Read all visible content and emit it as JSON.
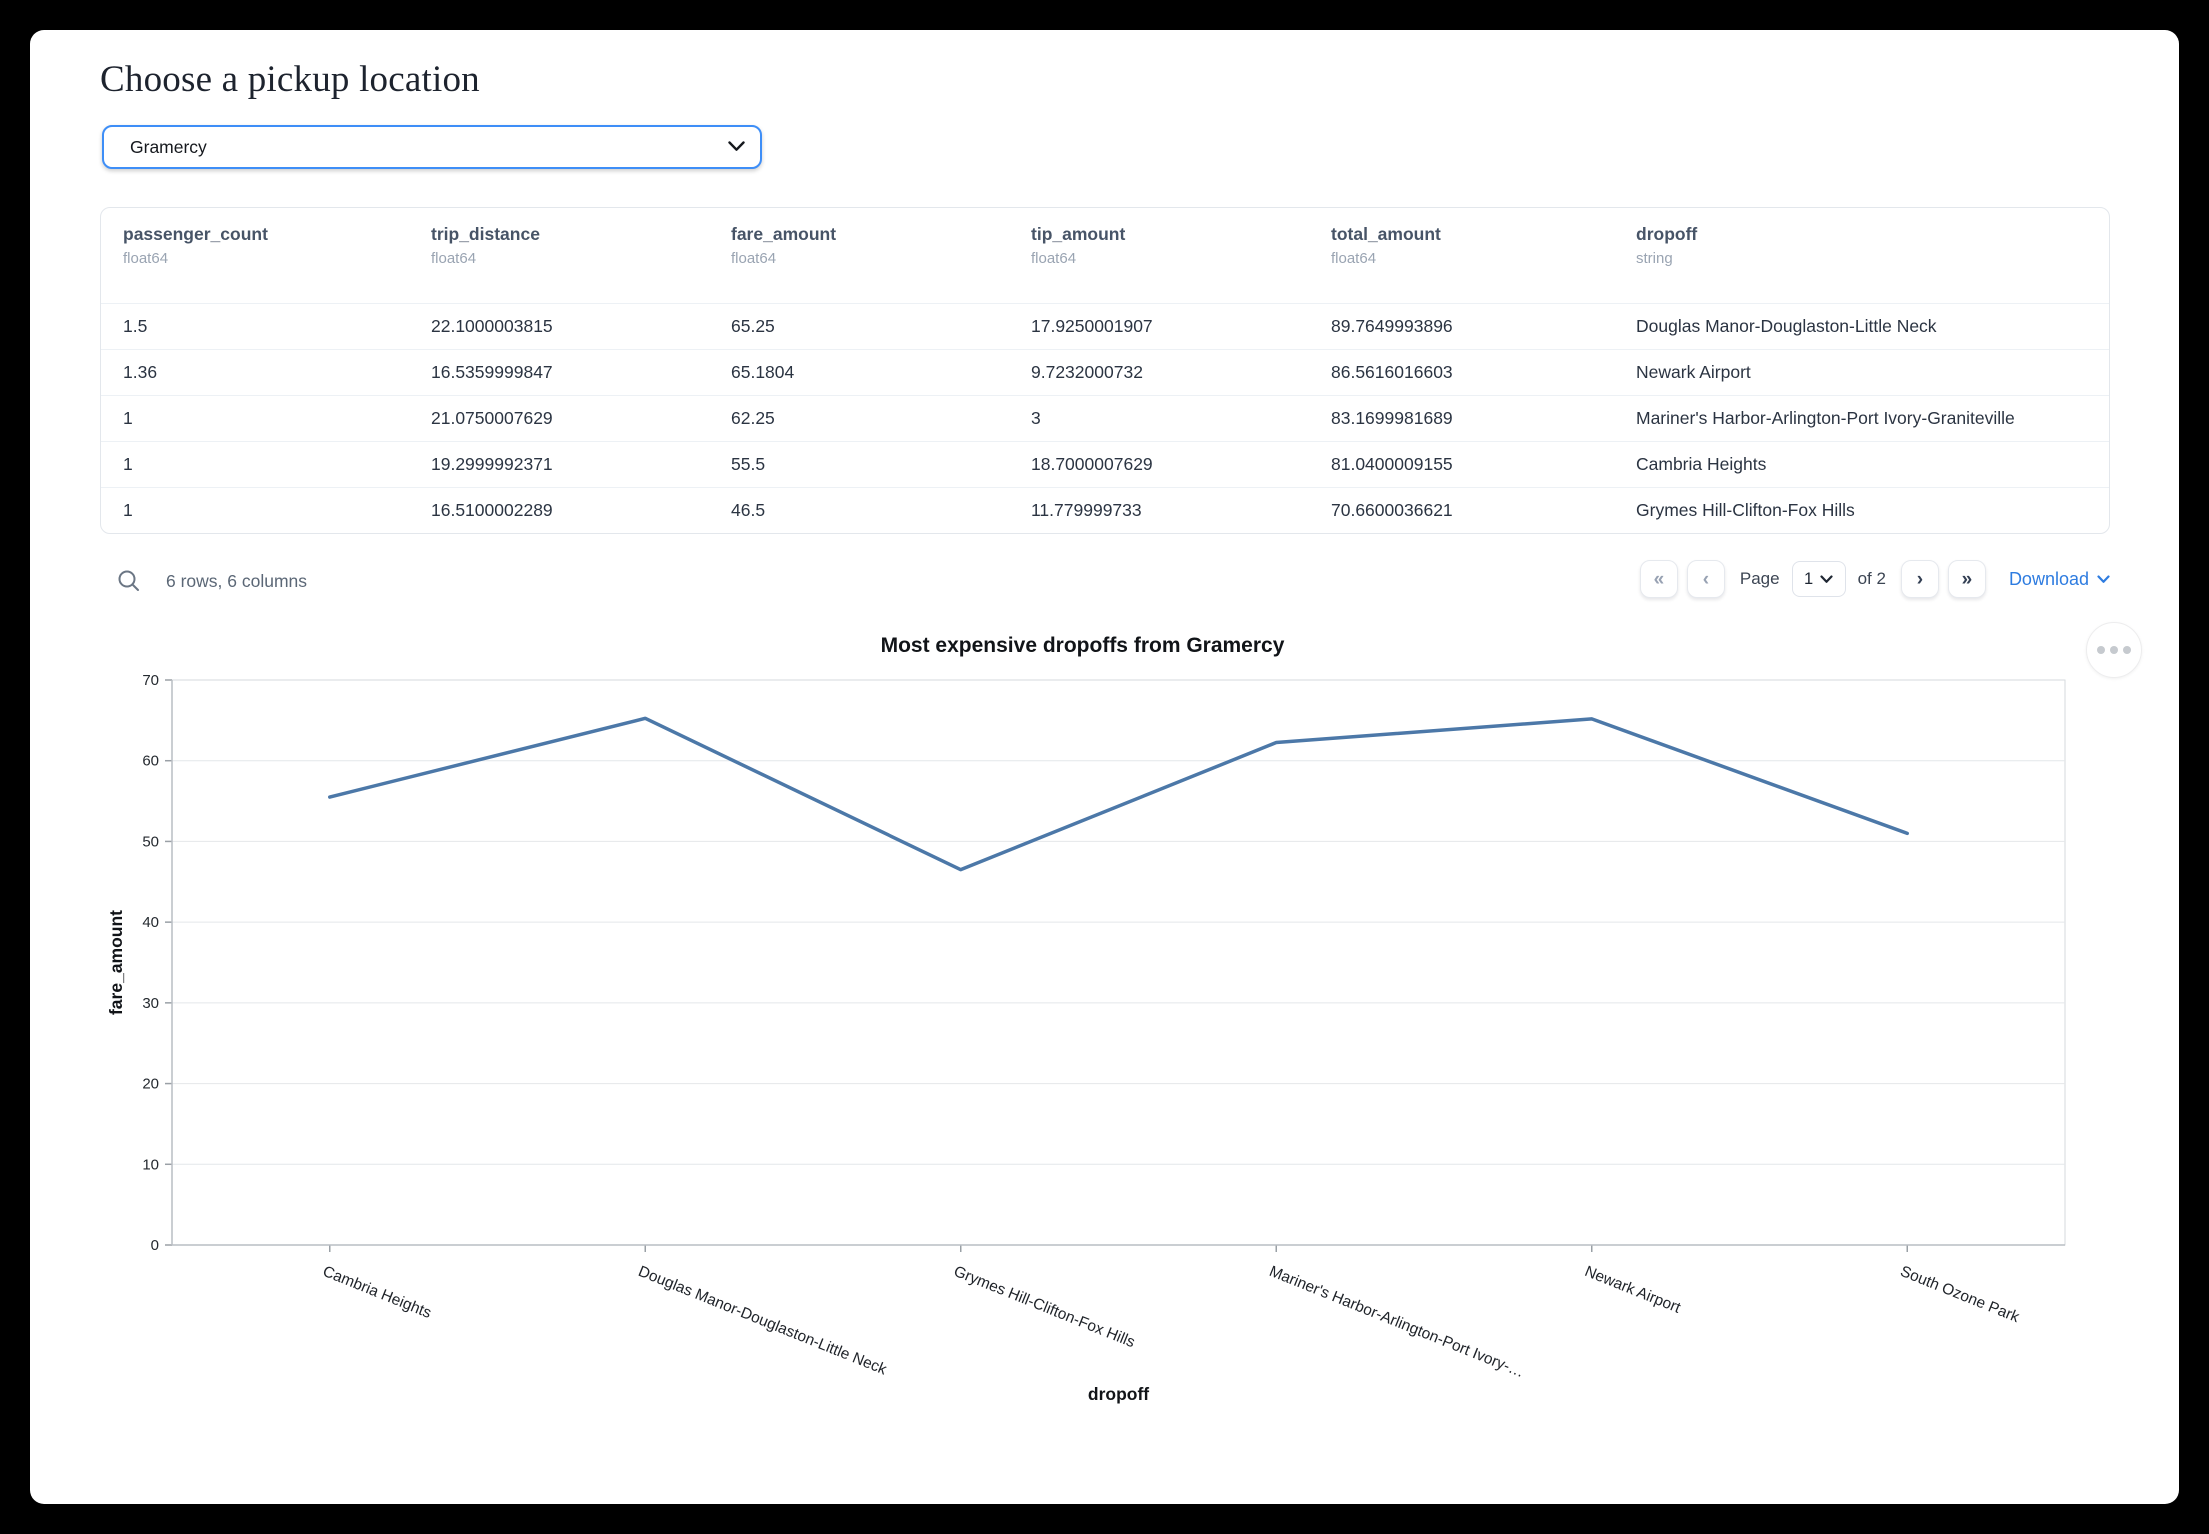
{
  "page": {
    "title": "Choose a pickup location"
  },
  "pickup_select": {
    "value": "Gramercy",
    "options": [
      "Gramercy"
    ]
  },
  "table": {
    "columns": [
      {
        "name": "passenger_count",
        "dtype": "float64"
      },
      {
        "name": "trip_distance",
        "dtype": "float64"
      },
      {
        "name": "fare_amount",
        "dtype": "float64"
      },
      {
        "name": "tip_amount",
        "dtype": "float64"
      },
      {
        "name": "total_amount",
        "dtype": "float64"
      },
      {
        "name": "dropoff",
        "dtype": "string"
      }
    ],
    "rows": [
      [
        "1.5",
        "22.1000003815",
        "65.25",
        "17.9250001907",
        "89.7649993896",
        "Douglas Manor-Douglaston-Little Neck"
      ],
      [
        "1.36",
        "16.5359999847",
        "65.1804",
        "9.7232000732",
        "86.5616016603",
        "Newark Airport"
      ],
      [
        "1",
        "21.0750007629",
        "62.25",
        "3",
        "83.1699981689",
        "Mariner's Harbor-Arlington-Port Ivory-Graniteville"
      ],
      [
        "1",
        "19.2999992371",
        "55.5",
        "18.7000007629",
        "81.0400009155",
        "Cambria Heights"
      ],
      [
        "1",
        "16.5100002289",
        "46.5",
        "11.779999733",
        "70.6600036621",
        "Grymes Hill-Clifton-Fox Hills"
      ]
    ],
    "summary": "6 rows, 6 columns"
  },
  "pagination": {
    "first_icon": "«",
    "prev_icon": "‹",
    "next_icon": "›",
    "last_icon": "»",
    "page_label": "Page",
    "current_page": "1",
    "of_label": "of 2",
    "download_label": "Download"
  },
  "chart_data": {
    "type": "line",
    "title": "Most expensive dropoffs from Gramercy",
    "xlabel": "dropoff",
    "ylabel": "fare_amount",
    "categories": [
      "Cambria Heights",
      "Douglas Manor-Douglaston-Little Neck",
      "Grymes Hill-Clifton-Fox Hills",
      "Mariner's Harbor-Arlington-Port Ivory-…",
      "Newark Airport",
      "South Ozone Park"
    ],
    "values": [
      55.5,
      65.25,
      46.5,
      62.25,
      65.1804,
      51
    ],
    "ylim": [
      0,
      70
    ],
    "yticks": [
      0,
      10,
      20,
      30,
      40,
      50,
      60,
      70
    ],
    "grid": true,
    "legend": "none",
    "line_color": "#4c78a8",
    "label_angle_deg": 22
  }
}
